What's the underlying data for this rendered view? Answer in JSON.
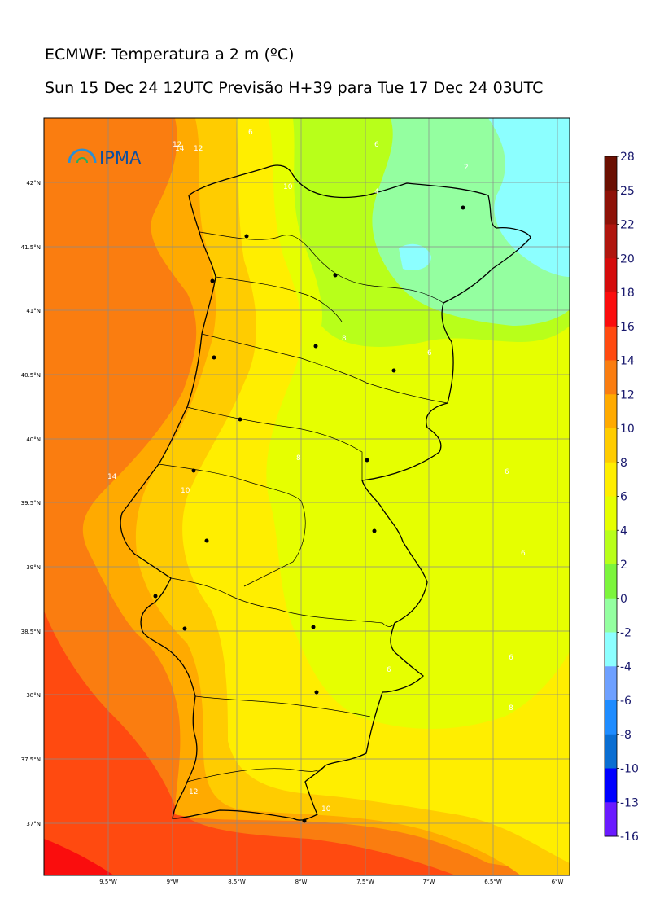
{
  "title_line1": "ECMWF: Temperatura a 2 m (ºC)",
  "title_line2": "Sun 15 Dec 24 12UTC Previsão H+39 para Tue 17 Dec 24 03UTC",
  "logo_text": "IPMA",
  "latitude_labels": [
    "42°N",
    "41.5°N",
    "41°N",
    "40.5°N",
    "40°N",
    "39.5°N",
    "39°N",
    "38.5°N",
    "38°N",
    "37.5°N",
    "37°N"
  ],
  "longitude_labels": [
    "9.5°W",
    "9°W",
    "8.5°W",
    "8°W",
    "7.5°W",
    "7°W",
    "6.5°W",
    "6°W"
  ],
  "colorbar": {
    "labels": [
      "28",
      "25",
      "22",
      "20",
      "18",
      "16",
      "14",
      "12",
      "10",
      "8",
      "6",
      "4",
      "2",
      "0",
      "-2",
      "-4",
      "-6",
      "-8",
      "-10",
      "-13",
      "-16"
    ],
    "colors": [
      "#6b1002",
      "#8e1208",
      "#b0160e",
      "#d40b0b",
      "#fa0d0d",
      "#ff4a10",
      "#fa7d10",
      "#ffaa00",
      "#ffcc00",
      "#ffee00",
      "#e6ff00",
      "#b8ff1a",
      "#7cf53c",
      "#94ffa0",
      "#8cffff",
      "#6ea0ff",
      "#1e8cff",
      "#0a6ed2",
      "#0000ff",
      "#6a1aff",
      "#e61aff"
    ]
  },
  "contour_labels": [
    "14",
    "12",
    "10",
    "8",
    "6",
    "4",
    "2",
    "6",
    "6",
    "8",
    "6",
    "6",
    "10",
    "12",
    "8",
    "6",
    "6",
    "14",
    "10",
    "12"
  ],
  "colors": {
    "ocean_warm": "#fa7d10",
    "ocean_warmer": "#ff4a10",
    "ocean_hot": "#fa0d0d",
    "coast_band": "#ffaa00",
    "land_mild": "#ffcc00",
    "land_cool": "#ffee00",
    "inland": "#e6ff00",
    "north": "#b8ff1a",
    "cold": "#94ffa0",
    "coldest": "#8cffff"
  }
}
